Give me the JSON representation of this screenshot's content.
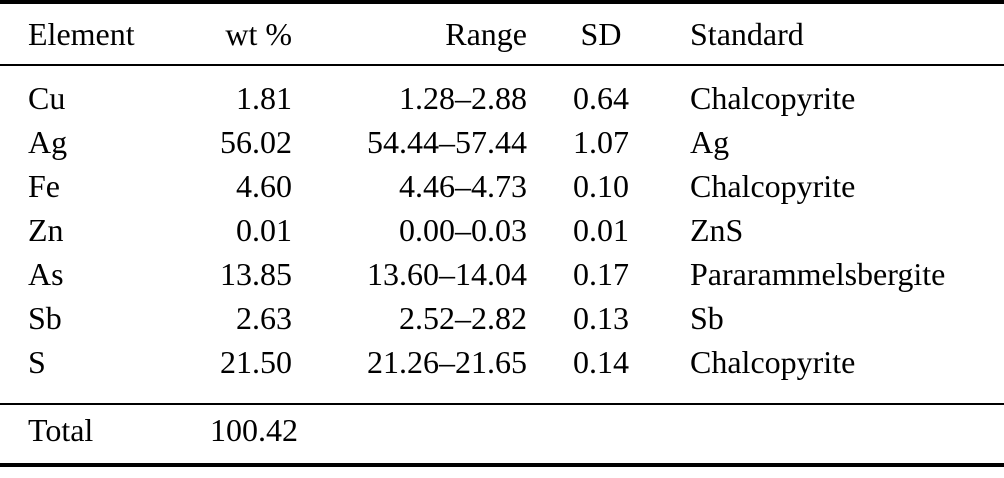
{
  "table": {
    "columns": [
      "Element",
      "wt %",
      "Range",
      "SD",
      "Standard"
    ],
    "rows": [
      {
        "element": "Cu",
        "wt": "1.81",
        "range": "1.28–2.88",
        "sd": "0.64",
        "standard": "Chalcopyrite"
      },
      {
        "element": "Ag",
        "wt": "56.02",
        "range": "54.44–57.44",
        "sd": "1.07",
        "standard": "Ag"
      },
      {
        "element": "Fe",
        "wt": "4.60",
        "range": "4.46–4.73",
        "sd": "0.10",
        "standard": "Chalcopyrite"
      },
      {
        "element": "Zn",
        "wt": "0.01",
        "range": "0.00–0.03",
        "sd": "0.01",
        "standard": "ZnS"
      },
      {
        "element": "As",
        "wt": "13.85",
        "range": "13.60–14.04",
        "sd": "0.17",
        "standard": "Pararammelsbergite"
      },
      {
        "element": "Sb",
        "wt": "2.63",
        "range": "2.52–2.82",
        "sd": "0.13",
        "standard": "Sb"
      },
      {
        "element": "S",
        "wt": "21.50",
        "range": "21.26–21.65",
        "sd": "0.14",
        "standard": "Chalcopyrite"
      }
    ],
    "total": {
      "label": "Total",
      "value": "100.42"
    }
  },
  "colors": {
    "text": "#000000",
    "rule": "#000000",
    "background": "#ffffff"
  }
}
